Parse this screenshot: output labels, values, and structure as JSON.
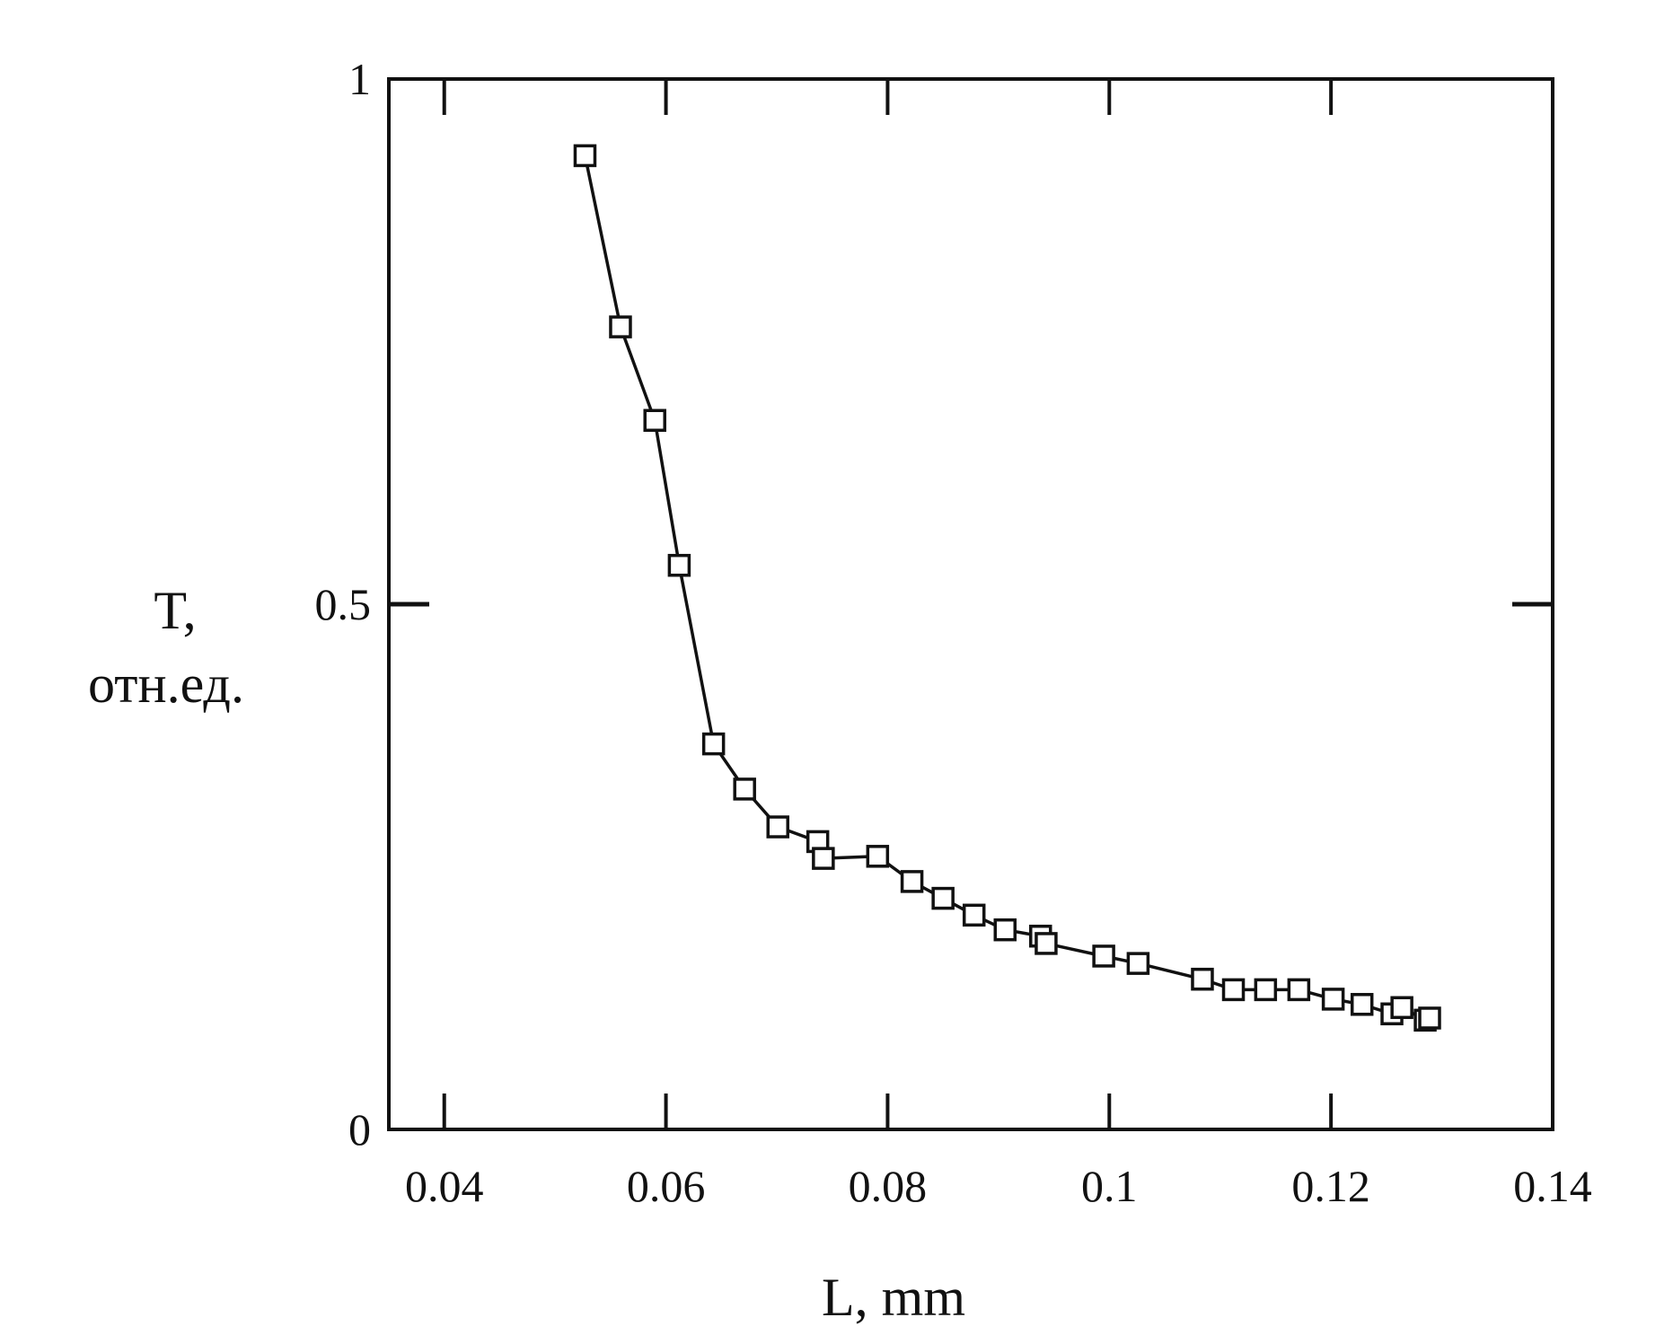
{
  "chart_data": {
    "type": "line",
    "title": "",
    "xlabel": "L, mm",
    "ylabel_lines": [
      "T,",
      "отн.ед."
    ],
    "xlim": [
      0.035,
      0.14
    ],
    "ylim": [
      0,
      1
    ],
    "x_ticks": [
      {
        "value": 0.04,
        "label": "0.04"
      },
      {
        "value": 0.06,
        "label": "0.06"
      },
      {
        "value": 0.08,
        "label": "0.08"
      },
      {
        "value": 0.1,
        "label": "0.1"
      },
      {
        "value": 0.12,
        "label": "0.12"
      },
      {
        "value": 0.14,
        "label": "0.14"
      }
    ],
    "y_ticks": [
      {
        "value": 0,
        "label": "0"
      },
      {
        "value": 0.5,
        "label": "0.5"
      },
      {
        "value": 1,
        "label": "1"
      }
    ],
    "grid": false,
    "legend": "none",
    "marker": "open-square",
    "line_color": "#111111",
    "series": [
      {
        "x": [
          0.0527,
          0.0559,
          0.059,
          0.0612,
          0.0643,
          0.0671,
          0.0701,
          0.0737,
          0.0742,
          0.0791,
          0.0822,
          0.085,
          0.0878,
          0.0906,
          0.0938,
          0.0943,
          0.0995,
          0.1026,
          0.1084,
          0.1112,
          0.1141,
          0.1171,
          0.1202,
          0.1228,
          0.1255,
          0.1264,
          0.1285,
          0.1289
        ],
        "y": [
          0.927,
          0.764,
          0.675,
          0.537,
          0.367,
          0.324,
          0.288,
          0.274,
          0.258,
          0.26,
          0.236,
          0.22,
          0.204,
          0.19,
          0.184,
          0.177,
          0.165,
          0.158,
          0.143,
          0.133,
          0.133,
          0.133,
          0.124,
          0.119,
          0.11,
          0.116,
          0.104,
          0.106
        ]
      }
    ]
  }
}
